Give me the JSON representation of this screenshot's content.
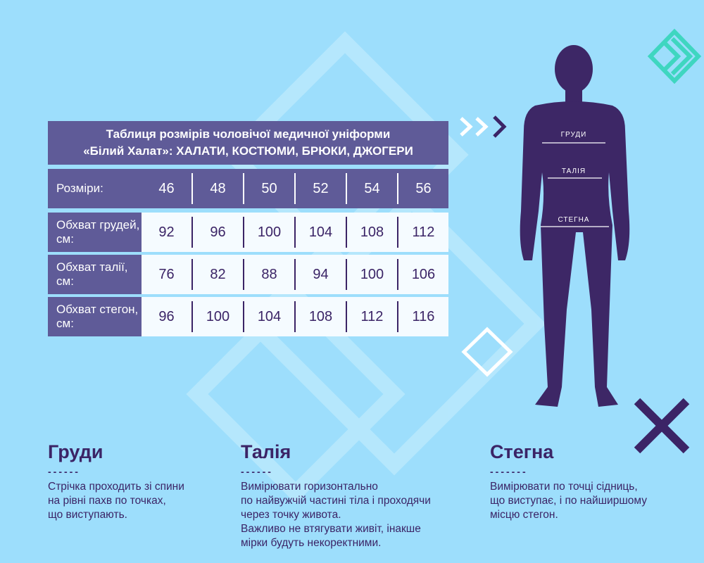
{
  "table": {
    "title_line1": "Таблиця розмірів чоловічої медичної уніформи",
    "title_line2": "«Білий Халат»: ХАЛАТИ, КОСТЮМИ, БРЮКИ, ДЖОГЕРИ",
    "sizes_label": "Розміри:",
    "sizes": [
      "46",
      "48",
      "50",
      "52",
      "54",
      "56"
    ],
    "rows": [
      {
        "label": "Обхват грудей, см:",
        "values": [
          "92",
          "96",
          "100",
          "104",
          "108",
          "112"
        ]
      },
      {
        "label": "Обхват талії, см:",
        "values": [
          "76",
          "82",
          "88",
          "94",
          "100",
          "106"
        ]
      },
      {
        "label": "Обхват стегон, см:",
        "values": [
          "96",
          "100",
          "104",
          "108",
          "112",
          "116"
        ]
      }
    ]
  },
  "figure": {
    "labels": {
      "chest": "ГРУДИ",
      "waist": "ТАЛІЯ",
      "hips": "СТЕГНА"
    },
    "color": "#3d2766"
  },
  "sections": [
    {
      "title": "Груди",
      "dash": "------",
      "text": "Стрічка проходить зі спини\nна рівні пахв по точках,\nщо виступають."
    },
    {
      "title": "Талія",
      "dash": "------",
      "text": "Вимірювати  горизонтально\nпо найвужчій частині тіла і проходячи\nчерез точку живота.\nВажливо не втягувати живіт, інакше\nмірки будуть некоректними."
    },
    {
      "title": "Стегна",
      "dash": "-------",
      "text": "Вимірювати по точці сідниць,\nщо виступає, і по найширшому\nмісцю стегон."
    }
  ],
  "colors": {
    "background": "#9ddefc",
    "table_header": "#5f5b98",
    "text_dark": "#3b2466",
    "accent_teal": "#3fd6c0"
  }
}
